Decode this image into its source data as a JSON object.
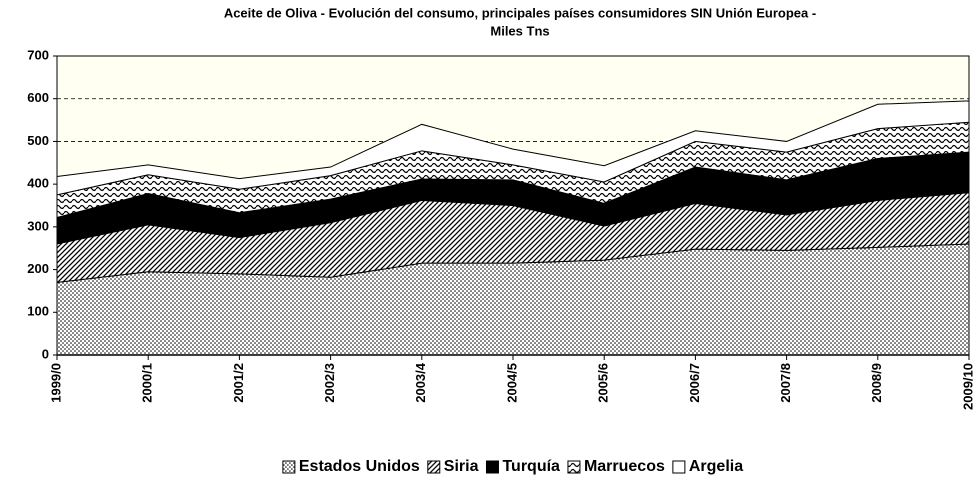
{
  "chart_data": {
    "type": "area",
    "stacked": true,
    "title": [
      "Aceite de Oliva - Evolución del consumo, principales países consumidores SIN Unión Europea -",
      "Miles Tns"
    ],
    "categories": [
      "1999/0",
      "2000/1",
      "2001/2",
      "2002/3",
      "2003/4",
      "2004/5",
      "2005/6",
      "2006/7",
      "2007/8",
      "2008/9",
      "2009/10"
    ],
    "series": [
      {
        "name": "Estados Unidos",
        "color": "#d8d8d8",
        "values": [
          170,
          195,
          190,
          182,
          215,
          215,
          222,
          248,
          245,
          252,
          260
        ]
      },
      {
        "name": "Siria",
        "color": "#a0a0a0",
        "values": [
          90,
          110,
          85,
          128,
          147,
          135,
          80,
          107,
          83,
          110,
          120
        ]
      },
      {
        "name": "Turquía",
        "color": "#000000",
        "values": [
          62,
          73,
          58,
          55,
          50,
          60,
          53,
          85,
          82,
          98,
          95
        ]
      },
      {
        "name": "Marruecos",
        "color": "#808080",
        "values": [
          53,
          44,
          55,
          55,
          66,
          35,
          50,
          60,
          65,
          70,
          70
        ]
      },
      {
        "name": "Argelia",
        "color": "#ffffff",
        "values": [
          43,
          23,
          25,
          20,
          62,
          37,
          38,
          25,
          25,
          57,
          50
        ]
      }
    ],
    "ylim": [
      0,
      700
    ],
    "yticks": [
      0,
      100,
      200,
      300,
      400,
      500,
      600,
      700
    ],
    "grid": true,
    "legend": "bottom"
  }
}
